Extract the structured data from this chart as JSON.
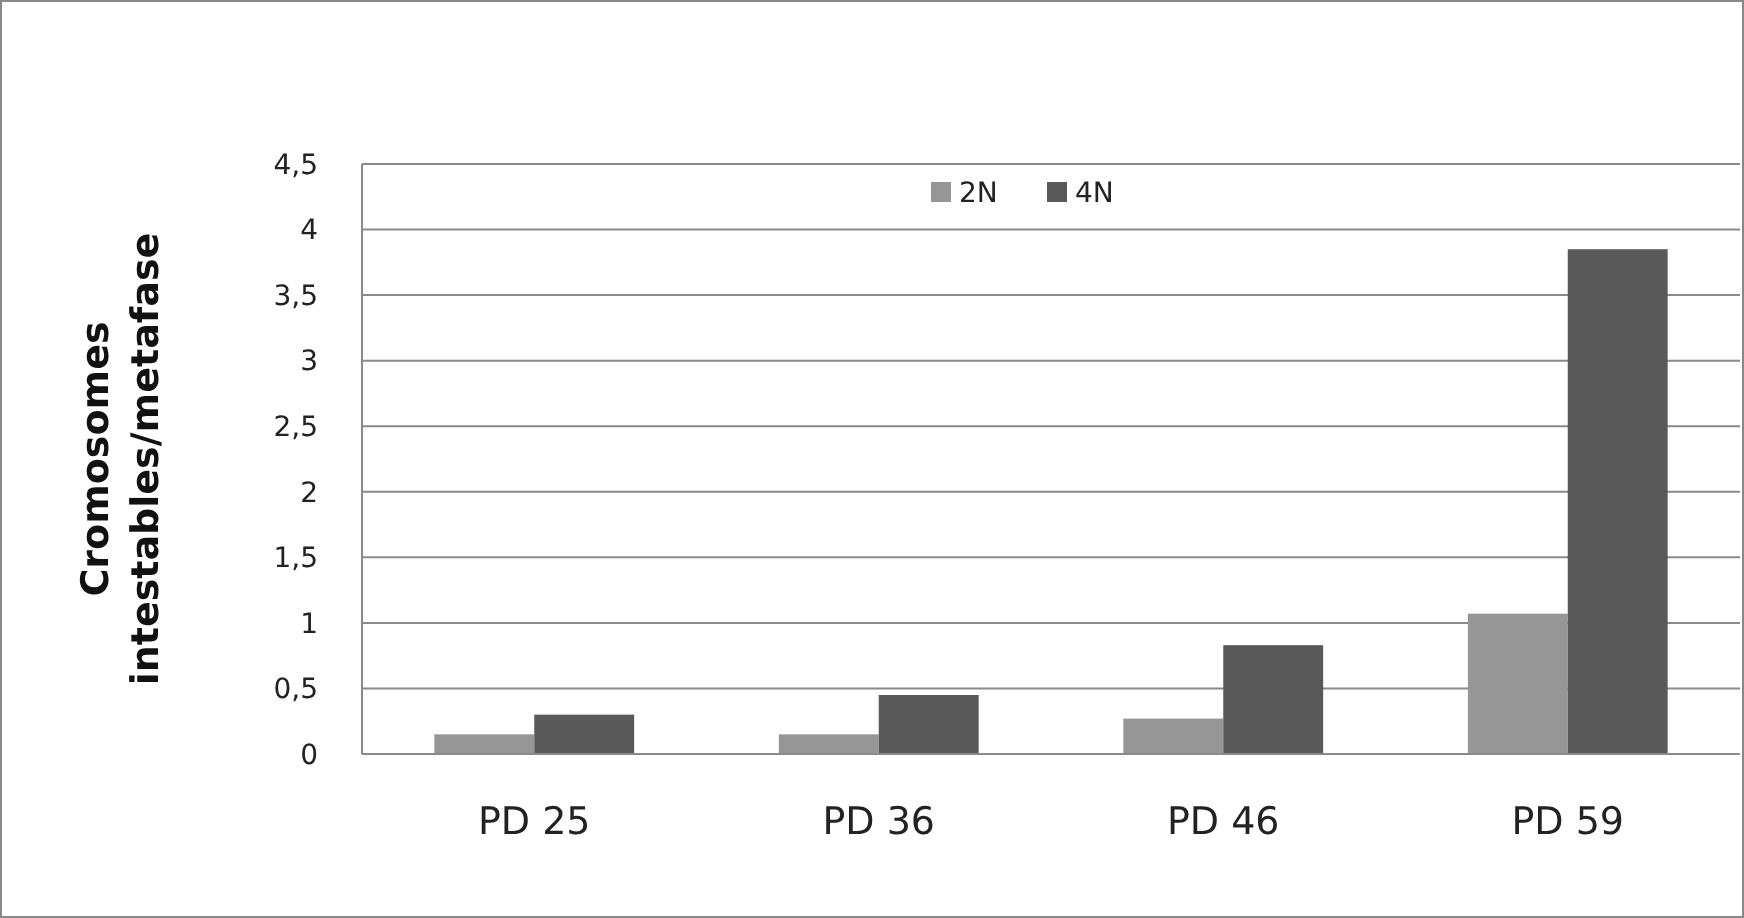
{
  "chart_data": {
    "type": "bar",
    "ylabel": "Cromosomes intestables/metafase",
    "categories": [
      "PD 25",
      "PD 36",
      "PD 46",
      "PD 59"
    ],
    "series": [
      {
        "name": "2N",
        "color": "#969696",
        "values": [
          0.15,
          0.15,
          0.27,
          1.07
        ]
      },
      {
        "name": "4N",
        "color": "#595959",
        "values": [
          0.3,
          0.45,
          0.83,
          3.85
        ]
      }
    ],
    "ylim": [
      0,
      4.5
    ],
    "yticks": [
      0,
      {
        "value": 0.5,
        "label": "0,5"
      },
      1,
      {
        "value": 1.5,
        "label": "1,5"
      },
      2,
      {
        "value": 2.5,
        "label": "2,5"
      },
      3,
      {
        "value": 3.5,
        "label": "3,5"
      },
      4,
      {
        "value": 4.5,
        "label": "4,5"
      }
    ],
    "grid": "y",
    "legend": "top"
  }
}
